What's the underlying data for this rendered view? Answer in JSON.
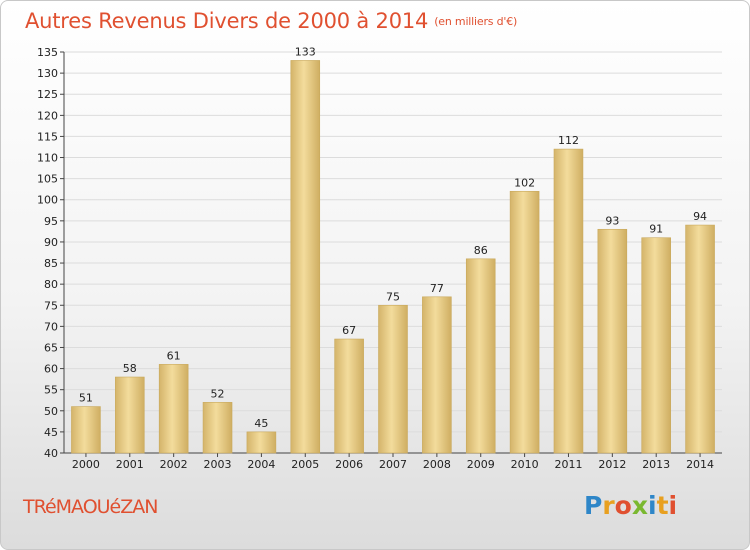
{
  "header": {
    "title": "Autres Revenus Divers de 2000 à 2014",
    "subtitle": "(en milliers d'€)"
  },
  "footer": {
    "commune": "TRéMAOUéZAN",
    "logo_letters": [
      "P",
      "r",
      "o",
      "x",
      "i",
      "t",
      "i"
    ],
    "logo_colors": [
      "#2e86c8",
      "#e8a020",
      "#e05030",
      "#7ab830",
      "#2e86c8",
      "#e8a020",
      "#e05030"
    ]
  },
  "chart_data": {
    "type": "bar",
    "categories": [
      "2000",
      "2001",
      "2002",
      "2003",
      "2004",
      "2005",
      "2006",
      "2007",
      "2008",
      "2009",
      "2010",
      "2011",
      "2012",
      "2013",
      "2014"
    ],
    "values": [
      51,
      58,
      61,
      52,
      45,
      133,
      67,
      75,
      77,
      86,
      102,
      112,
      93,
      91,
      94
    ],
    "ylim": [
      40,
      135
    ],
    "yticks": [
      40,
      45,
      50,
      55,
      60,
      65,
      70,
      75,
      80,
      85,
      90,
      95,
      100,
      105,
      110,
      115,
      120,
      125,
      130,
      135
    ],
    "grid": true,
    "bar_color": "#e6cb86",
    "title": "Autres Revenus Divers de 2000 à 2014",
    "ylabel": "(en milliers d'€)",
    "xlabel": ""
  }
}
